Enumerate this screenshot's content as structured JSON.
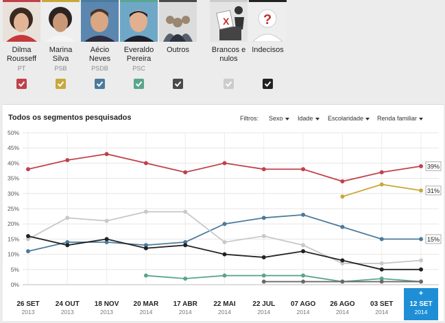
{
  "candidates": [
    {
      "name_line1": "Dilma",
      "name_line2": "Rousseff",
      "party": "PT",
      "color": "#c0414b",
      "icon": "dilma-portrait"
    },
    {
      "name_line1": "Marina",
      "name_line2": "Silva",
      "party": "PSB",
      "color": "#c8a83a",
      "icon": "marina-portrait"
    },
    {
      "name_line1": "Aécio",
      "name_line2": "Neves",
      "party": "PSDB",
      "color": "#4a7a9c",
      "icon": "aecio-portrait"
    },
    {
      "name_line1": "Everaldo",
      "name_line2": "Pereira",
      "party": "PSC",
      "color": "#5aa58e",
      "icon": "everaldo-portrait"
    },
    {
      "name_line1": "Outros",
      "name_line2": "",
      "party": "",
      "color": "#4a4a4a",
      "icon": "group-icon"
    },
    {
      "name_line1": "Brancos e",
      "name_line2": "nulos",
      "party": "",
      "color": "#cccccc",
      "icon": "ballot-box-icon"
    },
    {
      "name_line1": "Indecisos",
      "name_line2": "",
      "party": "",
      "color": "#222222",
      "icon": "question-person-icon"
    }
  ],
  "panel": {
    "title": "Todos os segmentos pesquisados",
    "filters_label": "Filtros:",
    "filters": [
      "Sexo",
      "Idade",
      "Escolaridade",
      "Renda familiar"
    ]
  },
  "chart_data": {
    "type": "line",
    "title": "Todos os segmentos pesquisados",
    "x": [
      "26 SET",
      "24 OUT",
      "18 NOV",
      "20 MAR",
      "17 ABR",
      "22 MAI",
      "22 JUL",
      "07 AGO",
      "26 AGO",
      "03 SET",
      "12 SET"
    ],
    "x_years": [
      "2013",
      "2013",
      "2013",
      "2014",
      "2014",
      "2014",
      "2014",
      "2014",
      "2014",
      "2014",
      "2014"
    ],
    "selected_index": 10,
    "selected_marker": "+",
    "ylim": [
      0,
      50
    ],
    "yticks": [
      "0%",
      "5%",
      "10%",
      "15%",
      "20%",
      "25%",
      "30%",
      "35%",
      "40%",
      "45%",
      "50%"
    ],
    "series": [
      {
        "name": "Dilma Rousseff",
        "color": "#c0414b",
        "values": [
          38,
          41,
          43,
          40,
          37,
          40,
          38,
          38,
          34,
          37,
          39
        ],
        "end_label": "39%"
      },
      {
        "name": "Marina Silva",
        "color": "#c8a83a",
        "values": [
          null,
          null,
          null,
          null,
          null,
          null,
          null,
          null,
          29,
          33,
          31
        ],
        "end_label": "31%"
      },
      {
        "name": "Aécio Neves",
        "color": "#4a7a9c",
        "values": [
          11,
          14,
          14,
          13,
          14,
          20,
          22,
          23,
          19,
          15,
          15
        ],
        "end_label": "15%"
      },
      {
        "name": "Everaldo Pereira",
        "color": "#5aa58e",
        "values": [
          null,
          null,
          null,
          3,
          2,
          3,
          3,
          3,
          1,
          2,
          1
        ],
        "end_label": ""
      },
      {
        "name": "Outros",
        "color": "#6a6a6a",
        "values": [
          null,
          null,
          null,
          null,
          null,
          null,
          1,
          1,
          1,
          1,
          1
        ],
        "end_label": ""
      },
      {
        "name": "Brancos e nulos",
        "color": "#c8c8c8",
        "values": [
          15,
          22,
          21,
          24,
          24,
          14,
          16,
          13,
          7,
          7,
          8
        ],
        "end_label": ""
      },
      {
        "name": "Indecisos",
        "color": "#222222",
        "values": [
          16,
          13,
          15,
          12,
          13,
          10,
          9,
          11,
          8,
          5,
          5
        ],
        "end_label": ""
      }
    ]
  }
}
